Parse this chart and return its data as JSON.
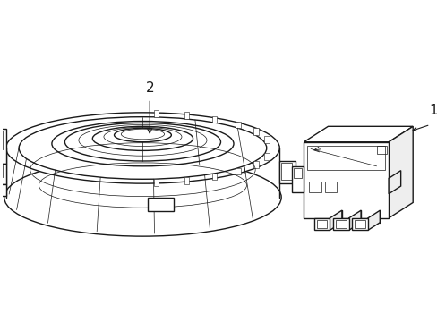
{
  "bg_color": "#ffffff",
  "line_color": "#1a1a1a",
  "line_width": 1.0,
  "thin_line": 0.5,
  "fig_width": 4.89,
  "fig_height": 3.6,
  "dpi": 100,
  "label_1": "1",
  "label_2": "2"
}
